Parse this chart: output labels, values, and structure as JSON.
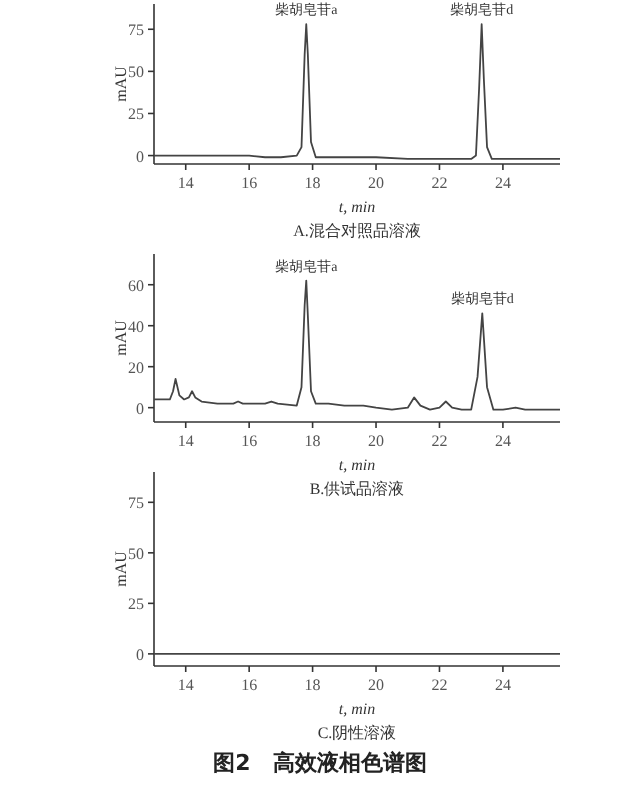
{
  "chart_data": [
    {
      "type": "line",
      "title": "A.混合对照品溶液",
      "xlabel": "t, min",
      "ylabel": "mAU",
      "xlim": [
        13,
        25.8
      ],
      "xticks": [
        14,
        16,
        18,
        20,
        22,
        24
      ],
      "ylim": [
        -5,
        90
      ],
      "yticks": [
        0,
        25,
        50,
        75
      ],
      "series": [
        {
          "color": "#444444",
          "x": [
            13,
            14,
            15,
            16,
            16.5,
            17,
            17.5,
            17.65,
            17.75,
            17.8,
            17.85,
            17.95,
            18.1,
            18.5,
            19,
            19.5,
            20,
            21,
            22,
            23,
            23.15,
            23.25,
            23.33,
            23.4,
            23.5,
            23.65,
            24,
            24.5,
            25,
            25.8
          ],
          "values": [
            0,
            0,
            0,
            0,
            -1,
            -1,
            0,
            5,
            60,
            78,
            60,
            8,
            -1,
            -1,
            -1,
            -1,
            -1,
            -2,
            -2,
            -2,
            0,
            40,
            78,
            45,
            5,
            -2,
            -2,
            -2,
            -2,
            -2
          ]
        }
      ],
      "annotations": [
        {
          "text": "柴胡皂苷a",
          "x": 17.8,
          "y": 78
        },
        {
          "text": "柴胡皂苷d",
          "x": 23.33,
          "y": 78
        }
      ]
    },
    {
      "type": "line",
      "title": "B.供试品溶液",
      "xlabel": "t, min",
      "ylabel": "mAU",
      "xlim": [
        13,
        25.8
      ],
      "xticks": [
        14,
        16,
        18,
        20,
        22,
        24
      ],
      "ylim": [
        -7,
        75
      ],
      "yticks": [
        0,
        20,
        40,
        60
      ],
      "series": [
        {
          "color": "#444444",
          "x": [
            13,
            13.5,
            13.6,
            13.68,
            13.8,
            13.95,
            14.1,
            14.2,
            14.3,
            14.5,
            15,
            15.5,
            15.65,
            15.8,
            16.5,
            16.7,
            16.9,
            17.5,
            17.65,
            17.75,
            17.8,
            17.85,
            17.95,
            18.1,
            18.5,
            19,
            19.6,
            20,
            20.5,
            21,
            21.2,
            21.4,
            21.7,
            22,
            22.2,
            22.4,
            22.7,
            23,
            23.2,
            23.35,
            23.5,
            23.7,
            24,
            24.4,
            24.7,
            25,
            25.8
          ],
          "values": [
            4,
            4,
            8,
            14,
            6,
            4,
            5,
            8,
            5,
            3,
            2,
            2,
            3,
            2,
            2,
            3,
            2,
            1,
            10,
            50,
            62,
            45,
            8,
            2,
            2,
            1,
            1,
            0,
            -1,
            0,
            5,
            1,
            -1,
            0,
            3,
            0,
            -1,
            -1,
            15,
            46,
            10,
            -1,
            -1,
            0,
            -1,
            -1,
            -1
          ]
        }
      ],
      "annotations": [
        {
          "text": "柴胡皂苷a",
          "x": 17.8,
          "y": 62
        },
        {
          "text": "柴胡皂苷d",
          "x": 23.35,
          "y": 46
        }
      ]
    },
    {
      "type": "line",
      "title": "C.阴性溶液",
      "xlabel": "t, min",
      "ylabel": "mAU",
      "xlim": [
        13,
        25.8
      ],
      "xticks": [
        14,
        16,
        18,
        20,
        22,
        24
      ],
      "ylim": [
        -6,
        90
      ],
      "yticks": [
        0,
        25,
        50,
        75
      ],
      "series": [
        {
          "color": "#444444",
          "x": [
            13,
            19,
            25.8
          ],
          "values": [
            0,
            0,
            0
          ]
        }
      ],
      "annotations": [
        "图2　高效液相色谱图"
      ]
    }
  ]
}
